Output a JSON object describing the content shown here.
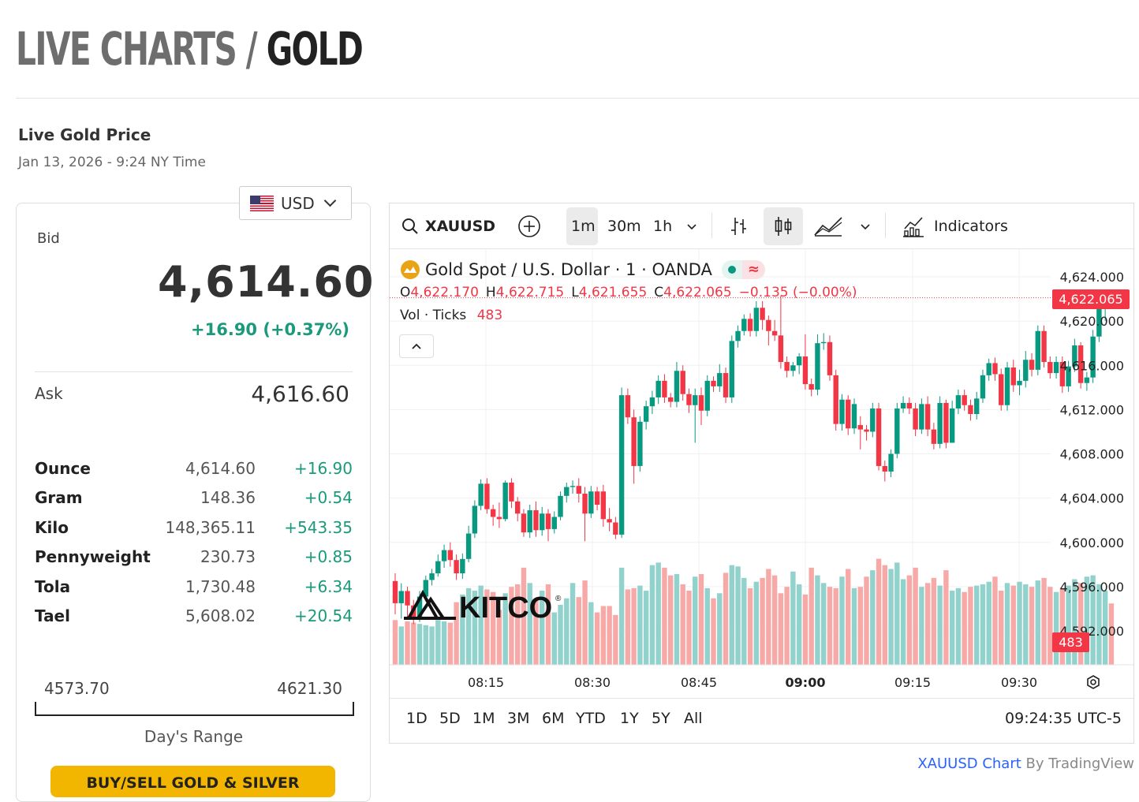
{
  "header": {
    "title_part1": "LIVE CHARTS / ",
    "title_part2": "GOLD"
  },
  "price_panel": {
    "title": "Live Gold Price",
    "datetime": "Jan 13, 2026 - 9:24 NY Time",
    "currency": "USD",
    "bid_label": "Bid",
    "bid_value": "4,614.60",
    "bid_change": "+16.90 (+0.37%)",
    "ask_label": "Ask",
    "ask_value": "4,616.60",
    "units": [
      {
        "name": "Ounce",
        "value": "4,614.60",
        "change": "+16.90"
      },
      {
        "name": "Gram",
        "value": "148.36",
        "change": "+0.54"
      },
      {
        "name": "Kilo",
        "value": "148,365.11",
        "change": "+543.35"
      },
      {
        "name": "Pennyweight",
        "value": "230.73",
        "change": "+0.85"
      },
      {
        "name": "Tola",
        "value": "1,730.48",
        "change": "+6.34"
      },
      {
        "name": "Tael",
        "value": "5,608.02",
        "change": "+20.54"
      }
    ],
    "range_low": "4573.70",
    "range_high": "4621.30",
    "range_label": "Day's Range",
    "buy_button": "BUY/SELL GOLD & SILVER"
  },
  "chart_toolbar": {
    "symbol": "XAUUSD",
    "intervals": [
      "1m",
      "30m",
      "1h"
    ],
    "selected_interval": "1m",
    "indicators_label": "Indicators"
  },
  "chart_legend": {
    "name": "Gold Spot / U.S. Dollar · 1 · OANDA",
    "o_label": "O",
    "o": "4,622.170",
    "h_label": "H",
    "h": "4,622.715",
    "l_label": "L",
    "l": "4,621.655",
    "c_label": "C",
    "c": "4,622.065",
    "change": "−0.135 (−0.00%)",
    "vol_label": "Vol · Ticks",
    "vol_value": "483",
    "last_price_tag": "4,622.065",
    "volume_tag": "483",
    "watermark": "KITCO",
    "tilde_icon": "≈"
  },
  "time_ranges": [
    "1D",
    "5D",
    "1M",
    "3M",
    "6M",
    "YTD",
    "1Y",
    "5Y",
    "All"
  ],
  "clock": "09:24:35 UTC-5",
  "credit": {
    "link": "XAUUSD Chart",
    "suffix": " By TradingView"
  },
  "colors": {
    "up": "#089981",
    "down": "#f23645",
    "up_vol": "#92d2cc",
    "down_vol": "#f7a9a7",
    "accent_green": "#1a9a7a",
    "button": "#f2b600"
  },
  "chart_data": {
    "type": "candlestick",
    "title": "Gold Spot / U.S. Dollar · 1 · OANDA",
    "y_ticks": [
      "4,624.000",
      "4,620.000",
      "4,616.000",
      "4,612.000",
      "4,608.000",
      "4,604.000",
      "4,600.000",
      "4,596.000",
      "4,592.000"
    ],
    "x_ticks": [
      "08:15",
      "08:30",
      "08:45",
      "09:00",
      "09:15",
      "09:30"
    ],
    "ylim": [
      4591,
      4625
    ],
    "candles": [
      [
        4596.5,
        4594.5,
        4597.2,
        4593.5,
        35
      ],
      [
        4594.5,
        4595.6,
        4596.3,
        4593.1,
        30
      ],
      [
        4595.6,
        4594.3,
        4596.0,
        4593.2,
        34
      ],
      [
        4594.3,
        4593.2,
        4594.8,
        4592.6,
        33
      ],
      [
        4593.2,
        4595.1,
        4595.6,
        4592.8,
        32
      ],
      [
        4595.1,
        4596.6,
        4597.0,
        4594.7,
        31
      ],
      [
        4596.6,
        4597.2,
        4597.6,
        4596.1,
        30
      ],
      [
        4597.2,
        4598.3,
        4598.9,
        4596.9,
        35
      ],
      [
        4598.3,
        4599.3,
        4599.8,
        4597.7,
        34
      ],
      [
        4599.3,
        4598.4,
        4600.0,
        4597.8,
        33
      ],
      [
        4598.4,
        4597.2,
        4598.9,
        4596.6,
        49
      ],
      [
        4597.2,
        4598.5,
        4599.0,
        4596.7,
        55
      ],
      [
        4598.5,
        4600.8,
        4601.5,
        4598.2,
        60
      ],
      [
        4600.8,
        4603.3,
        4603.8,
        4600.4,
        58
      ],
      [
        4603.3,
        4605.3,
        4605.7,
        4602.9,
        62
      ],
      [
        4605.3,
        4603.0,
        4605.8,
        4602.6,
        59
      ],
      [
        4603.0,
        4602.3,
        4603.4,
        4601.5,
        57
      ],
      [
        4602.3,
        4602.1,
        4603.6,
        4601.3,
        43
      ],
      [
        4602.1,
        4605.4,
        4605.6,
        4601.9,
        56
      ],
      [
        4605.4,
        4603.7,
        4605.8,
        4603.1,
        61
      ],
      [
        4603.7,
        4602.6,
        4604.1,
        4601.9,
        63
      ],
      [
        4602.6,
        4600.9,
        4603.0,
        4600.5,
        76
      ],
      [
        4600.9,
        4602.9,
        4603.4,
        4600.4,
        64
      ],
      [
        4602.9,
        4601.1,
        4603.7,
        4600.5,
        51
      ],
      [
        4601.1,
        4602.6,
        4603.2,
        4600.6,
        58
      ],
      [
        4602.6,
        4601.2,
        4603.0,
        4600.1,
        63
      ],
      [
        4601.2,
        4602.3,
        4602.8,
        4600.8,
        41
      ],
      [
        4602.3,
        4604.2,
        4604.6,
        4602.0,
        47
      ],
      [
        4604.2,
        4605.0,
        4605.4,
        4603.6,
        52
      ],
      [
        4605.0,
        4605.1,
        4605.6,
        4604.4,
        64
      ],
      [
        4605.1,
        4604.4,
        4605.8,
        4603.6,
        53
      ],
      [
        4604.4,
        4602.6,
        4605.0,
        4600.1,
        66
      ],
      [
        4602.6,
        4604.6,
        4605.1,
        4602.2,
        49
      ],
      [
        4604.6,
        4603.4,
        4605.0,
        4602.9,
        41
      ],
      [
        4604.6,
        4602.1,
        4605.2,
        4601.4,
        46
      ],
      [
        4602.1,
        4601.8,
        4603.1,
        4601.0,
        46
      ],
      [
        4601.8,
        4600.7,
        4602.3,
        4600.3,
        39
      ],
      [
        4600.7,
        4613.3,
        4614.0,
        4600.4,
        76
      ],
      [
        4613.3,
        4611.3,
        4613.9,
        4610.7,
        59
      ],
      [
        4611.3,
        4606.9,
        4612.0,
        4605.3,
        60
      ],
      [
        4606.9,
        4610.9,
        4611.4,
        4606.4,
        62
      ],
      [
        4610.9,
        4612.3,
        4612.8,
        4610.2,
        58
      ],
      [
        4612.3,
        4613.1,
        4613.7,
        4611.6,
        78
      ],
      [
        4613.1,
        4614.6,
        4615.1,
        4612.5,
        80
      ],
      [
        4614.6,
        4613.1,
        4615.2,
        4612.6,
        76
      ],
      [
        4613.1,
        4612.7,
        4613.5,
        4612.2,
        70
      ],
      [
        4612.7,
        4615.5,
        4616.3,
        4612.2,
        71
      ],
      [
        4615.5,
        4613.4,
        4616.0,
        4612.8,
        63
      ],
      [
        4613.4,
        4612.4,
        4613.9,
        4611.7,
        58
      ],
      [
        4612.4,
        4613.3,
        4613.9,
        4609.0,
        69
      ],
      [
        4613.3,
        4611.9,
        4614.0,
        4610.6,
        71
      ],
      [
        4611.9,
        4614.6,
        4615.1,
        4611.4,
        60
      ],
      [
        4614.6,
        4614.1,
        4615.0,
        4613.6,
        52
      ],
      [
        4614.1,
        4615.3,
        4616.1,
        4613.6,
        56
      ],
      [
        4615.3,
        4613.1,
        4615.8,
        4612.6,
        72
      ],
      [
        4613.1,
        4618.2,
        4618.7,
        4612.6,
        78
      ],
      [
        4618.2,
        4619.1,
        4619.6,
        4617.6,
        77
      ],
      [
        4619.1,
        4620.2,
        4620.6,
        4618.7,
        68
      ],
      [
        4620.2,
        4619.1,
        4620.7,
        4618.6,
        60
      ],
      [
        4619.1,
        4621.2,
        4621.8,
        4618.6,
        65
      ],
      [
        4621.2,
        4620.1,
        4621.8,
        4619.2,
        68
      ],
      [
        4620.1,
        4619.1,
        4620.5,
        4617.8,
        75
      ],
      [
        4619.1,
        4618.7,
        4620.1,
        4618.2,
        70
      ],
      [
        4618.7,
        4616.3,
        4622.3,
        4615.7,
        56
      ],
      [
        4616.3,
        4615.5,
        4616.8,
        4614.9,
        61
      ],
      [
        4615.5,
        4616.0,
        4616.3,
        4615.0,
        73
      ],
      [
        4616.0,
        4616.8,
        4617.1,
        4615.2,
        63
      ],
      [
        4616.8,
        4614.3,
        4618.8,
        4613.8,
        55
      ],
      [
        4614.3,
        4613.8,
        4614.8,
        4613.2,
        76
      ],
      [
        4613.8,
        4618.0,
        4618.8,
        4613.3,
        70
      ],
      [
        4618.0,
        4618.1,
        4618.9,
        4617.4,
        64
      ],
      [
        4618.1,
        4615.1,
        4618.7,
        4614.6,
        61
      ],
      [
        4615.1,
        4610.7,
        4615.6,
        4610.1,
        60
      ],
      [
        4610.7,
        4612.9,
        4613.4,
        4610.1,
        69
      ],
      [
        4612.9,
        4610.3,
        4613.3,
        4609.7,
        75
      ],
      [
        4610.3,
        4612.5,
        4613.0,
        4609.8,
        60
      ],
      [
        4610.6,
        4610.2,
        4611.4,
        4608.4,
        61
      ],
      [
        4610.2,
        4610.0,
        4610.6,
        4609.2,
        69
      ],
      [
        4610.0,
        4612.1,
        4612.6,
        4609.5,
        74
      ],
      [
        4612.1,
        4606.9,
        4612.6,
        4606.5,
        83
      ],
      [
        4606.9,
        4606.4,
        4607.4,
        4605.5,
        78
      ],
      [
        4606.4,
        4608.0,
        4608.4,
        4605.9,
        75
      ],
      [
        4608.0,
        4612.1,
        4612.6,
        4607.6,
        80
      ],
      [
        4612.1,
        4612.6,
        4613.2,
        4611.7,
        67
      ],
      [
        4612.6,
        4612.1,
        4613.1,
        4611.6,
        70
      ],
      [
        4612.1,
        4610.2,
        4612.6,
        4609.6,
        76
      ],
      [
        4610.2,
        4612.5,
        4613.0,
        4609.8,
        61
      ],
      [
        4612.5,
        4610.2,
        4613.2,
        4609.6,
        64
      ],
      [
        4610.2,
        4608.9,
        4610.8,
        4608.4,
        68
      ],
      [
        4608.9,
        4612.6,
        4613.2,
        4608.5,
        62
      ],
      [
        4612.6,
        4609.0,
        4612.9,
        4608.5,
        74
      ],
      [
        4609.0,
        4612.1,
        4612.8,
        4609.5,
        58
      ],
      [
        4612.1,
        4613.3,
        4613.8,
        4611.6,
        60
      ],
      [
        4613.3,
        4612.4,
        4613.8,
        4611.9,
        57
      ],
      [
        4612.4,
        4611.6,
        4612.9,
        4611.0,
        61
      ],
      [
        4611.6,
        4613.0,
        4613.6,
        4611.1,
        62
      ],
      [
        4613.0,
        4615.1,
        4615.6,
        4612.6,
        63
      ],
      [
        4615.1,
        4616.2,
        4616.6,
        4614.6,
        65
      ],
      [
        4616.2,
        4615.2,
        4616.7,
        4614.6,
        69
      ],
      [
        4615.2,
        4612.4,
        4615.7,
        4611.9,
        58
      ],
      [
        4612.4,
        4615.8,
        4616.3,
        4611.9,
        64
      ],
      [
        4615.8,
        4614.2,
        4616.5,
        4613.6,
        62
      ],
      [
        4614.2,
        4614.6,
        4615.6,
        4613.3,
        65
      ],
      [
        4614.6,
        4616.5,
        4617.3,
        4614.0,
        63
      ],
      [
        4616.5,
        4615.6,
        4617.1,
        4615.0,
        61
      ],
      [
        4615.6,
        4619.1,
        4619.6,
        4615.1,
        66
      ],
      [
        4619.1,
        4616.3,
        4619.6,
        4615.8,
        68
      ],
      [
        4616.3,
        4615.3,
        4616.8,
        4614.8,
        61
      ],
      [
        4615.3,
        4616.3,
        4616.8,
        4614.8,
        57
      ],
      [
        4616.3,
        4614.1,
        4616.8,
        4613.5,
        60
      ],
      [
        4614.1,
        4615.9,
        4616.4,
        4613.6,
        62
      ],
      [
        4615.9,
        4617.8,
        4618.4,
        4615.4,
        67
      ],
      [
        4617.8,
        4614.4,
        4618.1,
        4613.9,
        64
      ],
      [
        4614.4,
        4614.9,
        4615.4,
        4613.7,
        69
      ],
      [
        4614.9,
        4618.6,
        4619.2,
        4614.4,
        70
      ],
      [
        4618.6,
        4622.1,
        4622.6,
        4618.1,
        63
      ],
      [
        4622.1,
        4622.6,
        4622.7,
        4620.0,
        58
      ],
      [
        4622.2,
        4622.1,
        4622.7,
        4621.7,
        48
      ]
    ]
  }
}
